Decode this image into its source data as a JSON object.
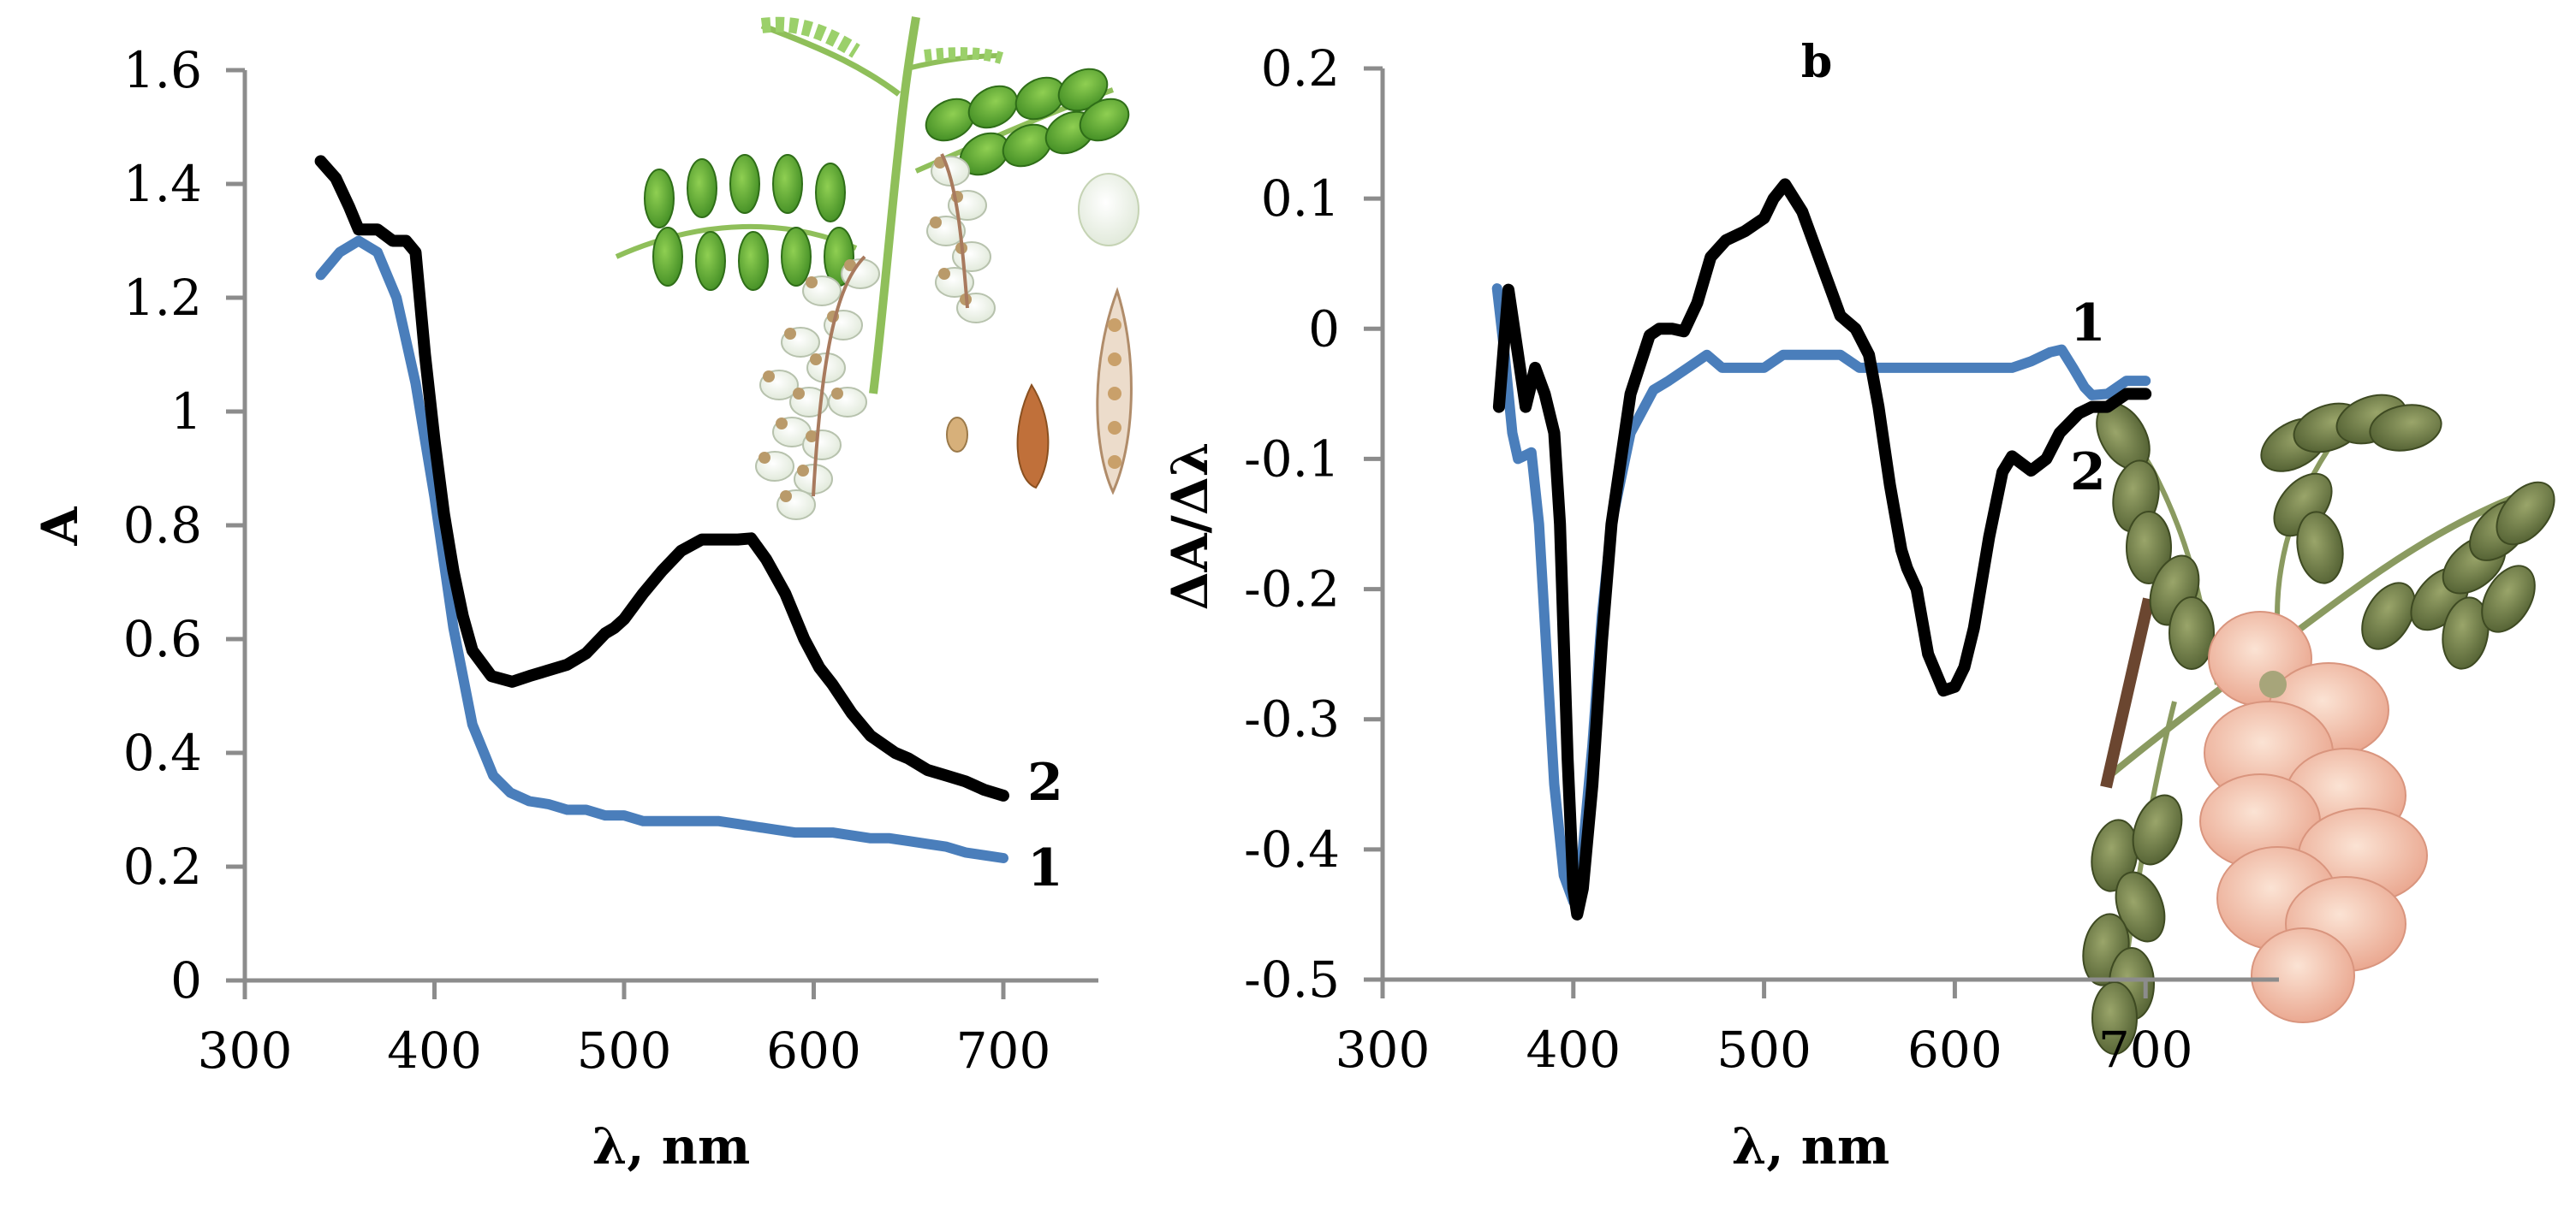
{
  "figure": {
    "description": "UV-Vis absorption spectra (a) and first-derivative spectra (b) of Robinia flower extracts, with botanical illustrations",
    "illustrations": [
      {
        "name": "white-locust-illustration",
        "subject": "Robinia pseudoacacia (white flowers, leaves, pods, seed)"
      },
      {
        "name": "pink-locust-illustration",
        "subject": "Robinia (pink-flowered branch with leaves)"
      }
    ]
  },
  "chart_data": [
    {
      "id": "a",
      "type": "line",
      "title": "",
      "panel_label": "",
      "xlabel": "λ, nm",
      "ylabel": "A",
      "xlim": [
        300,
        750
      ],
      "ylim": [
        0,
        1.6
      ],
      "x_ticks": [
        "300",
        "400",
        "500",
        "600",
        "700"
      ],
      "y_ticks": [
        "0",
        "0.2",
        "0.4",
        "0.6",
        "0.8",
        "1",
        "1.2",
        "1.4",
        "1.6"
      ],
      "grid": false,
      "legend": "inline curve labels at right end",
      "series": [
        {
          "name": "1",
          "label": "1",
          "color": "#4a7ebb",
          "x": [
            340,
            350,
            360,
            370,
            380,
            390,
            400,
            410,
            420,
            431,
            440,
            450,
            460,
            470,
            480,
            490,
            500,
            510,
            520,
            530,
            540,
            550,
            560,
            570,
            580,
            590,
            600,
            610,
            620,
            630,
            640,
            650,
            660,
            670,
            680,
            690,
            700
          ],
          "y": [
            1.24,
            1.28,
            1.3,
            1.28,
            1.2,
            1.05,
            0.85,
            0.62,
            0.45,
            0.36,
            0.33,
            0.315,
            0.31,
            0.3,
            0.3,
            0.29,
            0.29,
            0.28,
            0.28,
            0.28,
            0.28,
            0.28,
            0.275,
            0.27,
            0.265,
            0.26,
            0.26,
            0.26,
            0.255,
            0.25,
            0.25,
            0.245,
            0.24,
            0.235,
            0.225,
            0.22,
            0.215
          ]
        },
        {
          "name": "2",
          "label": "2",
          "color": "#000000",
          "x": [
            340,
            348,
            355,
            360,
            365,
            370,
            378,
            385,
            390,
            395,
            400,
            405,
            410,
            415,
            420,
            430,
            441,
            450,
            460,
            470,
            480,
            490,
            495,
            500,
            510,
            520,
            530,
            541,
            550,
            560,
            567,
            575,
            585,
            595,
            603,
            610,
            620,
            630,
            643,
            650,
            660,
            670,
            680,
            690,
            700
          ],
          "y": [
            1.44,
            1.41,
            1.36,
            1.32,
            1.32,
            1.32,
            1.3,
            1.3,
            1.28,
            1.1,
            0.95,
            0.82,
            0.72,
            0.64,
            0.58,
            0.535,
            0.525,
            0.535,
            0.545,
            0.555,
            0.575,
            0.61,
            0.62,
            0.635,
            0.68,
            0.72,
            0.755,
            0.775,
            0.775,
            0.775,
            0.777,
            0.74,
            0.68,
            0.6,
            0.55,
            0.52,
            0.47,
            0.43,
            0.4,
            0.39,
            0.37,
            0.36,
            0.35,
            0.335,
            0.325
          ]
        }
      ]
    },
    {
      "id": "b",
      "type": "line",
      "title": "",
      "panel_label": "b",
      "xlabel": "λ, nm",
      "ylabel": "ΔA/Δλ",
      "xlim": [
        300,
        750
      ],
      "ylim": [
        -0.5,
        0.2
      ],
      "x_ticks": [
        "300",
        "400",
        "500",
        "600",
        "700"
      ],
      "y_ticks": [
        "-0.5",
        "-0.4",
        "-0.3",
        "-0.2",
        "-0.1",
        "0",
        "0.1",
        "0.2"
      ],
      "grid": false,
      "legend": "inline curve labels at right end",
      "series": [
        {
          "name": "1",
          "label": "1",
          "color": "#4a7ebb",
          "x": [
            360,
            364,
            368,
            371,
            378,
            382,
            386,
            390,
            395,
            400,
            405,
            410,
            415,
            420,
            430,
            442,
            450,
            460,
            470,
            478,
            490,
            500,
            510,
            520,
            540,
            550,
            560,
            580,
            600,
            620,
            630,
            640,
            650,
            656,
            662,
            668,
            672,
            680,
            690,
            700
          ],
          "y": [
            0.031,
            -0.02,
            -0.08,
            -0.1,
            -0.095,
            -0.15,
            -0.25,
            -0.35,
            -0.42,
            -0.44,
            -0.4,
            -0.32,
            -0.22,
            -0.15,
            -0.08,
            -0.047,
            -0.04,
            -0.03,
            -0.02,
            -0.03,
            -0.03,
            -0.03,
            -0.02,
            -0.02,
            -0.02,
            -0.03,
            -0.03,
            -0.03,
            -0.03,
            -0.03,
            -0.03,
            -0.025,
            -0.018,
            -0.016,
            -0.03,
            -0.045,
            -0.051,
            -0.05,
            -0.04,
            -0.04
          ]
        },
        {
          "name": "2",
          "label": "2",
          "color": "#000000",
          "x": [
            361,
            366,
            371,
            375,
            380,
            385,
            390,
            393,
            397,
            400,
            402,
            405,
            410,
            415,
            420,
            430,
            440,
            445,
            452,
            458,
            465,
            472,
            480,
            490,
            500,
            505,
            511,
            520,
            530,
            540,
            548,
            555,
            560,
            566,
            572,
            575,
            580,
            586,
            594,
            600,
            605,
            610,
            618,
            625,
            630,
            640,
            648,
            655,
            665,
            672,
            680,
            690,
            700
          ],
          "y": [
            -0.06,
            0.03,
            -0.02,
            -0.06,
            -0.03,
            -0.05,
            -0.08,
            -0.15,
            -0.33,
            -0.43,
            -0.45,
            -0.43,
            -0.35,
            -0.24,
            -0.15,
            -0.05,
            -0.005,
            0.0,
            0.0,
            -0.002,
            0.02,
            0.055,
            0.068,
            0.075,
            0.085,
            0.1,
            0.111,
            0.09,
            0.05,
            0.01,
            0.0,
            -0.02,
            -0.06,
            -0.12,
            -0.17,
            -0.184,
            -0.2,
            -0.25,
            -0.278,
            -0.275,
            -0.26,
            -0.23,
            -0.16,
            -0.11,
            -0.098,
            -0.109,
            -0.1,
            -0.08,
            -0.065,
            -0.06,
            -0.06,
            -0.05,
            -0.05
          ]
        }
      ]
    }
  ]
}
